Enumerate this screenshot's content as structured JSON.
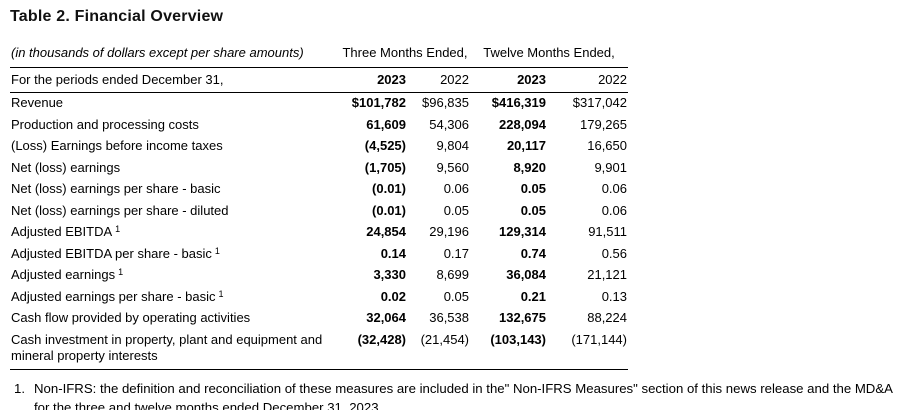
{
  "title": "Table 2. Financial Overview",
  "table": {
    "units_note": "(in thousands of dollars except per share amounts)",
    "col_groups": {
      "three_months": "Three Months Ended,",
      "twelve_months": "Twelve Months Ended,"
    },
    "period_label": "For the periods ended December 31,",
    "years": [
      "2023",
      "2022",
      "2023",
      "2022"
    ],
    "rows": [
      {
        "label": "Revenue",
        "sup": "",
        "values": [
          "$101,782",
          "$96,835",
          "$416,319",
          "$317,042"
        ]
      },
      {
        "label": "Production and processing costs",
        "sup": "",
        "values": [
          "61,609",
          "54,306",
          "228,094",
          "179,265"
        ]
      },
      {
        "label": "(Loss) Earnings before income taxes",
        "sup": "",
        "values": [
          "(4,525)",
          "9,804",
          "20,117",
          "16,650"
        ]
      },
      {
        "label": "Net (loss) earnings",
        "sup": "",
        "values": [
          "(1,705)",
          "9,560",
          "8,920",
          "9,901"
        ]
      },
      {
        "label": "Net (loss) earnings per share - basic",
        "sup": "",
        "values": [
          "(0.01)",
          "0.06",
          "0.05",
          "0.06"
        ]
      },
      {
        "label": "Net (loss) earnings per share - diluted",
        "sup": "",
        "values": [
          "(0.01)",
          "0.05",
          "0.05",
          "0.06"
        ]
      },
      {
        "label": "Adjusted EBITDA",
        "sup": "1",
        "values": [
          "24,854",
          "29,196",
          "129,314",
          "91,511"
        ]
      },
      {
        "label": "Adjusted EBITDA per share - basic",
        "sup": "1",
        "values": [
          "0.14",
          "0.17",
          "0.74",
          "0.56"
        ]
      },
      {
        "label": "Adjusted earnings",
        "sup": "1",
        "values": [
          "3,330",
          "8,699",
          "36,084",
          "21,121"
        ]
      },
      {
        "label": "Adjusted earnings per share - basic",
        "sup": "1",
        "values": [
          "0.02",
          "0.05",
          "0.21",
          "0.13"
        ]
      },
      {
        "label": "Cash flow provided by operating activities",
        "sup": "",
        "values": [
          "32,064",
          "36,538",
          "132,675",
          "88,224"
        ]
      },
      {
        "label": "Cash investment in property, plant and equipment and mineral property interests",
        "sup": "",
        "values": [
          "(32,428)",
          "(21,454)",
          "(103,143)",
          "(171,144)"
        ]
      }
    ]
  },
  "footnote": {
    "marker": "1.",
    "text": "Non-IFRS: the definition and reconciliation of these measures are included in the\" Non-IFRS Measures\" section of this news release and the MD&A for the three and twelve months ended December 31, 2023."
  }
}
